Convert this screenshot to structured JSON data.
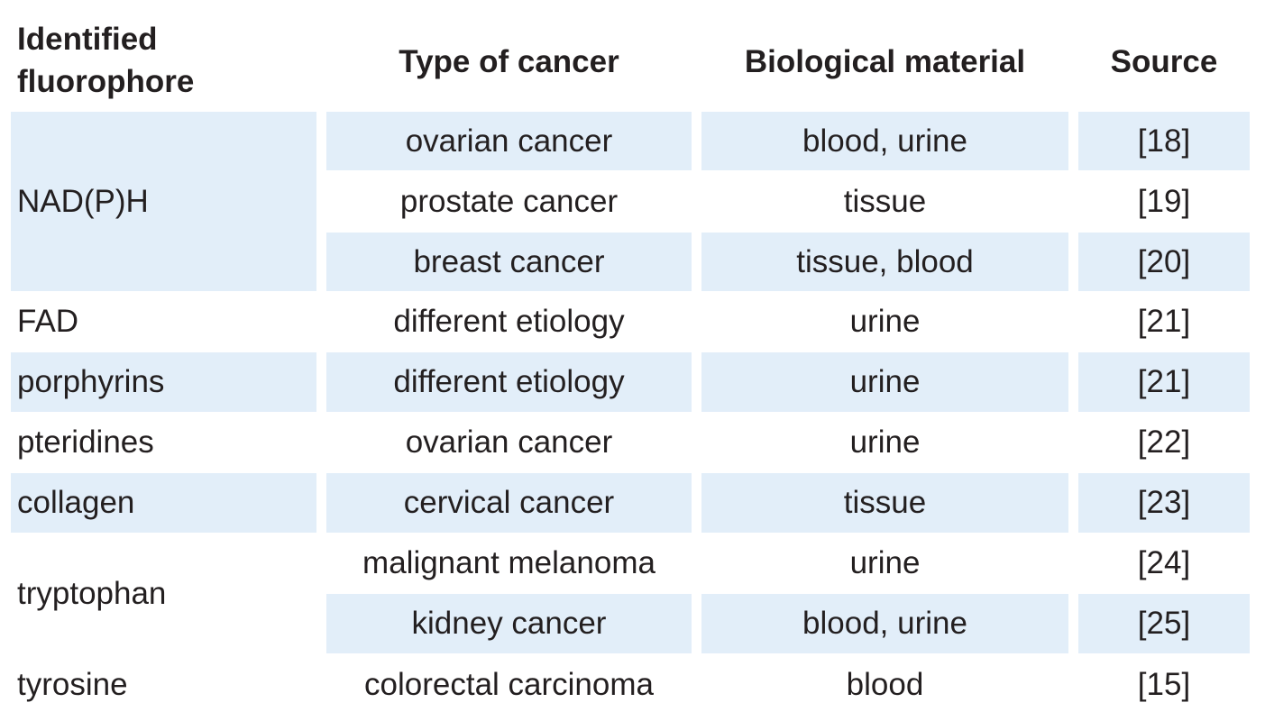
{
  "table": {
    "headers": {
      "fluorophore": "Identified fluorophore",
      "cancer_type": "Type of cancer",
      "material": "Biological material",
      "source": "Source"
    },
    "groups": [
      {
        "fluorophore": "NAD(P)H"
      },
      {
        "fluorophore": "FAD"
      },
      {
        "fluorophore": "porphyrins"
      },
      {
        "fluorophore": "pteridines"
      },
      {
        "fluorophore": "collagen"
      },
      {
        "fluorophore": "tryptophan"
      },
      {
        "fluorophore": "tyrosine"
      }
    ],
    "rows": [
      {
        "cancer": "ovarian cancer",
        "material": "blood, urine",
        "source": "[18]"
      },
      {
        "cancer": "prostate cancer",
        "material": "tissue",
        "source": "[19]"
      },
      {
        "cancer": "breast cancer",
        "material": "tissue, blood",
        "source": "[20]"
      },
      {
        "cancer": "different etiology",
        "material": "urine",
        "source": "[21]"
      },
      {
        "cancer": "different etiology",
        "material": "urine",
        "source": "[21]"
      },
      {
        "cancer": "ovarian cancer",
        "material": "urine",
        "source": "[22]"
      },
      {
        "cancer": "cervical cancer",
        "material": "tissue",
        "source": "[23]"
      },
      {
        "cancer": "malignant melanoma",
        "material": "urine",
        "source": "[24]"
      },
      {
        "cancer": "kidney cancer",
        "material": "blood, urine",
        "source": "[25]"
      },
      {
        "cancer": "colorectal carcinoma",
        "material": "blood",
        "source": "[15]"
      }
    ],
    "shade_color": "#e2eef9"
  }
}
